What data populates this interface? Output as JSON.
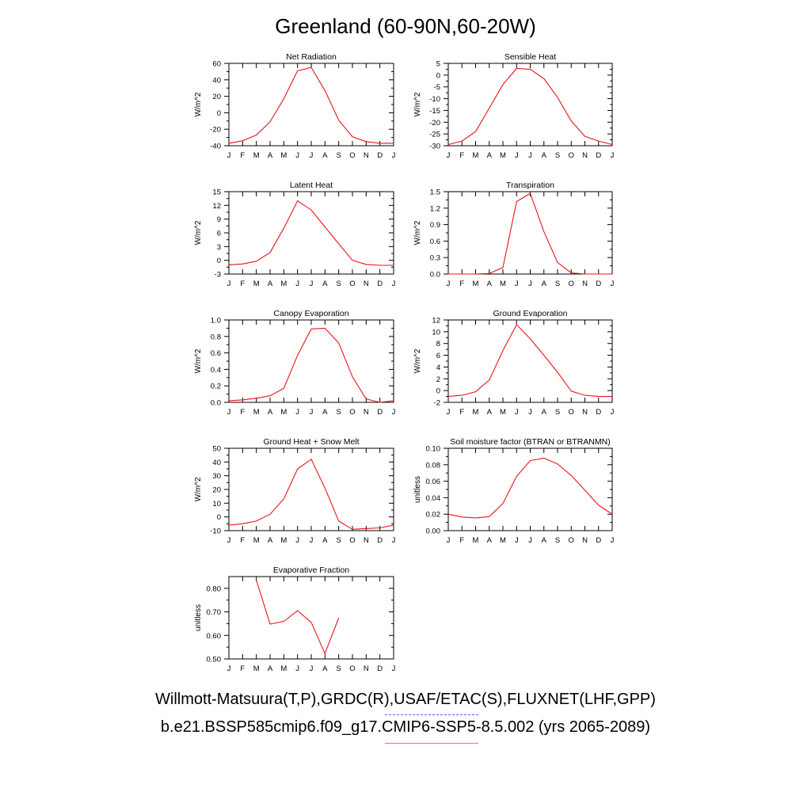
{
  "title": "Greenland (60-90N,60-20W)",
  "footer": {
    "observations": "Willmott-Matsuura(T,P),GRDC(R),USAF/ETAC(S),FLUXNET(LHF,GPP)",
    "case": "b.e21.BSSP585cmip6.f09_g17.CMIP6-SSP5-8.5.002 (yrs 2065-2089)"
  },
  "colors": {
    "model_line": "#e8141c",
    "observations_line": "#5a5ad8",
    "case_line": "#ff6a6a"
  },
  "chart_data": [
    {
      "type": "line",
      "title": "Net Radiation",
      "ylabel": "W/m^2",
      "categories": [
        "J",
        "F",
        "M",
        "A",
        "M",
        "J",
        "J",
        "A",
        "S",
        "O",
        "N",
        "D",
        "J"
      ],
      "ylim": [
        -40,
        60
      ],
      "yticks": [
        -40,
        -20,
        0,
        20,
        40,
        60
      ],
      "ytick_labels": [
        "-40",
        "-20",
        "0",
        "20",
        "40",
        "60"
      ],
      "values": [
        -37,
        -34,
        -27,
        -11,
        17,
        51,
        55,
        27,
        -9,
        -29,
        -35,
        -37,
        -37
      ]
    },
    {
      "type": "line",
      "title": "Sensible Heat",
      "ylabel": "W/m^2",
      "categories": [
        "J",
        "F",
        "M",
        "A",
        "M",
        "J",
        "J",
        "A",
        "S",
        "O",
        "N",
        "D",
        "J"
      ],
      "ylim": [
        -30,
        5
      ],
      "yticks": [
        -30,
        -25,
        -20,
        -15,
        -10,
        -5,
        0,
        5
      ],
      "ytick_labels": [
        "-30",
        "-25",
        "-20",
        "-15",
        "-10",
        "-5",
        "0",
        "5"
      ],
      "values": [
        -29.5,
        -28,
        -24,
        -14,
        -4,
        2.8,
        2.5,
        -1.5,
        -9.5,
        -19.5,
        -26,
        -28,
        -29.5
      ]
    },
    {
      "type": "line",
      "title": "Latent Heat",
      "ylabel": "W/m^2",
      "categories": [
        "J",
        "F",
        "M",
        "A",
        "M",
        "J",
        "J",
        "A",
        "S",
        "O",
        "N",
        "D",
        "J"
      ],
      "ylim": [
        -3,
        15
      ],
      "yticks": [
        -3,
        0,
        3,
        6,
        9,
        12,
        15
      ],
      "ytick_labels": [
        "-3",
        "0",
        "3",
        "6",
        "9",
        "12",
        "15"
      ],
      "values": [
        -1,
        -0.8,
        -0.2,
        1.7,
        7,
        13,
        11,
        7.3,
        3.6,
        0,
        -0.9,
        -1.1,
        -1.1
      ]
    },
    {
      "type": "line",
      "title": "Transpiration",
      "ylabel": "W/m^2",
      "categories": [
        "J",
        "F",
        "M",
        "A",
        "M",
        "J",
        "J",
        "A",
        "S",
        "O",
        "N",
        "D",
        "J"
      ],
      "ylim": [
        0,
        1.5
      ],
      "yticks": [
        0,
        0.3,
        0.6,
        0.9,
        1.2,
        1.5
      ],
      "ytick_labels": [
        "0.0",
        "0.3",
        "0.6",
        "0.9",
        "1.2",
        "1.5"
      ],
      "values": [
        0,
        0,
        0,
        0.01,
        0.12,
        1.32,
        1.47,
        0.77,
        0.21,
        0.02,
        0,
        0,
        0
      ]
    },
    {
      "type": "line",
      "title": "Canopy Evaporation",
      "ylabel": "W/m^2",
      "categories": [
        "J",
        "F",
        "M",
        "A",
        "M",
        "J",
        "J",
        "A",
        "S",
        "O",
        "N",
        "D",
        "J"
      ],
      "ylim": [
        0,
        1.0
      ],
      "yticks": [
        0,
        0.2,
        0.4,
        0.6,
        0.8,
        1.0
      ],
      "ytick_labels": [
        "0.0",
        "0.2",
        "0.4",
        "0.6",
        "0.8",
        "1.0"
      ],
      "values": [
        0.02,
        0.03,
        0.05,
        0.08,
        0.17,
        0.57,
        0.89,
        0.9,
        0.72,
        0.31,
        0.04,
        0,
        0.02
      ]
    },
    {
      "type": "line",
      "title": "Ground Evaporation",
      "ylabel": "W/m^2",
      "categories": [
        "J",
        "F",
        "M",
        "A",
        "M",
        "J",
        "J",
        "A",
        "S",
        "O",
        "N",
        "D",
        "J"
      ],
      "ylim": [
        -2,
        12
      ],
      "yticks": [
        -2,
        0,
        2,
        4,
        6,
        8,
        10,
        12
      ],
      "ytick_labels": [
        "-2",
        "0",
        "2",
        "4",
        "6",
        "8",
        "10",
        "12"
      ],
      "values": [
        -1,
        -0.8,
        -0.2,
        1.8,
        6.8,
        11.2,
        8.8,
        6,
        3.1,
        -0.1,
        -0.8,
        -1,
        -1
      ]
    },
    {
      "type": "line",
      "title": "Ground Heat + Snow Melt",
      "ylabel": "W/m^2",
      "categories": [
        "J",
        "F",
        "M",
        "A",
        "M",
        "J",
        "J",
        "A",
        "S",
        "O",
        "N",
        "D",
        "J"
      ],
      "ylim": [
        -10,
        50
      ],
      "yticks": [
        -10,
        0,
        10,
        20,
        30,
        40,
        50
      ],
      "ytick_labels": [
        "-10",
        "0",
        "10",
        "20",
        "30",
        "40",
        "50"
      ],
      "values": [
        -6,
        -5,
        -3,
        2,
        13,
        35,
        42,
        21,
        -3,
        -9,
        -8.5,
        -8,
        -6
      ]
    },
    {
      "type": "line",
      "title": "Soil moisture factor (BTRAN or BTRANMN)",
      "ylabel": "unitless",
      "categories": [
        "J",
        "F",
        "M",
        "A",
        "M",
        "J",
        "J",
        "A",
        "S",
        "O",
        "N",
        "D",
        "J"
      ],
      "ylim": [
        0,
        0.1
      ],
      "yticks": [
        0,
        0.02,
        0.04,
        0.06,
        0.08,
        0.1
      ],
      "ytick_labels": [
        "0.00",
        "0.02",
        "0.04",
        "0.06",
        "0.08",
        "0.10"
      ],
      "values": [
        0.02,
        0.0165,
        0.0155,
        0.017,
        0.033,
        0.066,
        0.085,
        0.088,
        0.081,
        0.067,
        0.049,
        0.031,
        0.02
      ]
    },
    {
      "type": "line",
      "title": "Evaporative Fraction",
      "ylabel": "unitless",
      "categories": [
        "J",
        "F",
        "M",
        "A",
        "M",
        "J",
        "J",
        "A",
        "S",
        "O",
        "N",
        "D",
        "J"
      ],
      "ylim": [
        0.5,
        0.85
      ],
      "yticks": [
        0.5,
        0.6,
        0.7,
        0.8
      ],
      "ytick_labels": [
        "0.50",
        "0.60",
        "0.70",
        "0.80"
      ],
      "values": [
        null,
        null,
        0.835,
        0.648,
        0.66,
        0.705,
        0.655,
        0.523,
        0.675,
        null,
        null,
        null,
        null
      ]
    }
  ]
}
